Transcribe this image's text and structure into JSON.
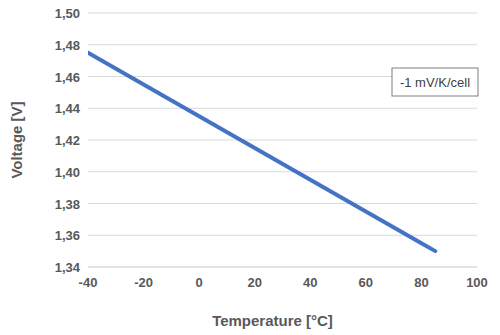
{
  "chart_data": {
    "type": "line",
    "x_label": "Temperature [°C]",
    "y_label": "Voltage [V]",
    "annotation": "-1 mV/K/cell",
    "x": [
      -40,
      -20,
      0,
      20,
      40,
      60,
      80,
      85
    ],
    "values": [
      1.475,
      1.455,
      1.435,
      1.415,
      1.395,
      1.375,
      1.355,
      1.35
    ],
    "color": "#4472c4",
    "marker": "none",
    "line_style": "solid",
    "grid": true,
    "xlim": [
      -40,
      100
    ],
    "xticks": [
      -40,
      -20,
      0,
      20,
      40,
      60,
      80,
      100
    ],
    "ylim": [
      1.34,
      1.5
    ],
    "yticks": [
      {
        "value": 1.34,
        "label": "1,34"
      },
      {
        "value": 1.36,
        "label": "1,36"
      },
      {
        "value": 1.38,
        "label": "1,38"
      },
      {
        "value": 1.4,
        "label": "1,40"
      },
      {
        "value": 1.42,
        "label": "1,42"
      },
      {
        "value": 1.44,
        "label": "1,44"
      },
      {
        "value": 1.46,
        "label": "1,46"
      },
      {
        "value": 1.48,
        "label": "1,48"
      },
      {
        "value": 1.5,
        "label": "1,50"
      }
    ]
  }
}
